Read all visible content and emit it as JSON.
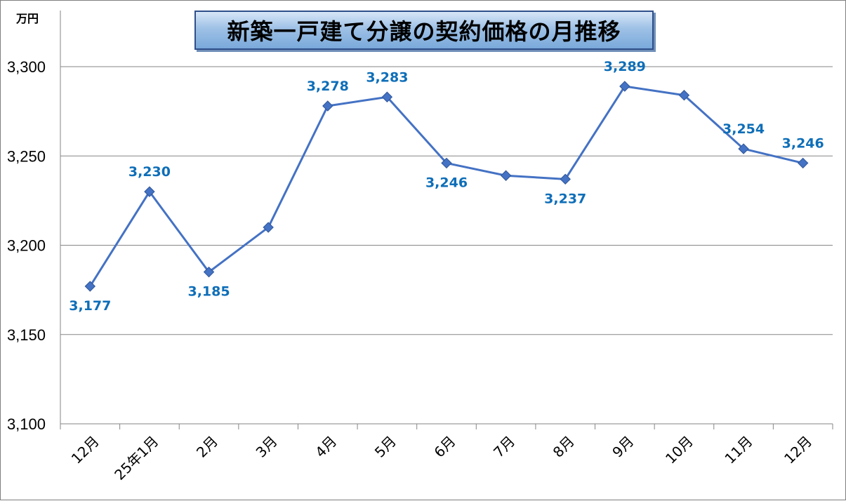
{
  "chart_data": {
    "type": "line",
    "title": "新築一戸建て分譲の契約価格の月推移",
    "unit": "万円",
    "categories": [
      "12月",
      "25年1月",
      "2月",
      "3月",
      "4月",
      "5月",
      "6月",
      "7月",
      "8月",
      "9月",
      "10月",
      "11月",
      "12月"
    ],
    "series": [
      {
        "values": [
          3177,
          3230,
          3185,
          3210,
          3278,
          3283,
          3246,
          3239,
          3237,
          3289,
          3284,
          3254,
          3246
        ]
      }
    ],
    "data_labels": [
      "3,177",
      "3,230",
      "3,185",
      "",
      "3,278",
      "3,283",
      "3,246",
      "",
      "3,237",
      "3,289",
      "",
      "3,254",
      "3,246"
    ],
    "ylim": [
      3100,
      3300
    ],
    "yticks": [
      3100,
      3150,
      3200,
      3250,
      3300
    ],
    "ytick_labels": [
      "3,100",
      "3,150",
      "3,200",
      "3,250",
      "3,300"
    ],
    "grid": true,
    "legend": "none",
    "colors": {
      "line": "#4472c4",
      "marker": "#4472c4",
      "data_label": "#0e6eb8",
      "gridline": "#868686"
    }
  }
}
